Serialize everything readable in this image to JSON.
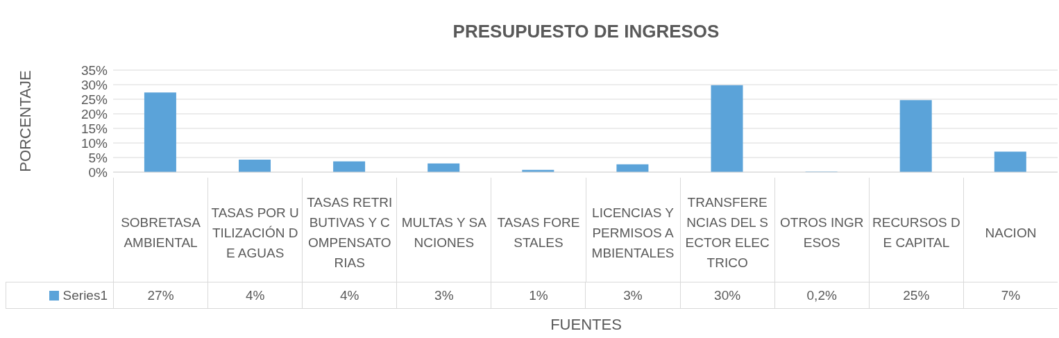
{
  "chart_data": {
    "type": "bar",
    "title": "PRESUPUESTO DE INGRESOS",
    "xlabel": "FUENTES",
    "ylabel": "PORCENTAJE",
    "categories": [
      "SOBRETASA AMBIENTAL",
      "TASAS POR UTILIZACIÓN DE AGUAS",
      "TASAS RETRIBUTIVAS Y COMPENSATORIAS",
      "MULTAS  Y SANCIONES",
      "TASAS FORESTALES",
      "LICENCIAS Y PERMISOS AMBIENTALES",
      "TRANSFERENCIAS DEL SECTOR ELECTRICO",
      "OTROS INGRESOS",
      "RECURSOS DE CAPITAL",
      "NACION"
    ],
    "series": [
      {
        "name": "Series1",
        "color": "#5ba3d9",
        "values": [
          27.3,
          4.3,
          3.7,
          3.0,
          0.8,
          2.7,
          29.8,
          0.2,
          24.7,
          7.0
        ],
        "value_labels": [
          "27%",
          "4%",
          "4%",
          "3%",
          "1%",
          "3%",
          "30%",
          "0,2%",
          "25%",
          "7%"
        ]
      }
    ],
    "ylim": [
      0,
      35
    ],
    "yticks": [
      {
        "value": 0,
        "label": "0%"
      },
      {
        "value": 5,
        "label": "5%"
      },
      {
        "value": 10,
        "label": "10%"
      },
      {
        "value": 15,
        "label": "15%"
      },
      {
        "value": 20,
        "label": "20%"
      },
      {
        "value": 25,
        "label": "25%"
      },
      {
        "value": 30,
        "label": "30%"
      },
      {
        "value": 35,
        "label": "35%"
      }
    ],
    "grid": "y",
    "legend": "bottom"
  }
}
